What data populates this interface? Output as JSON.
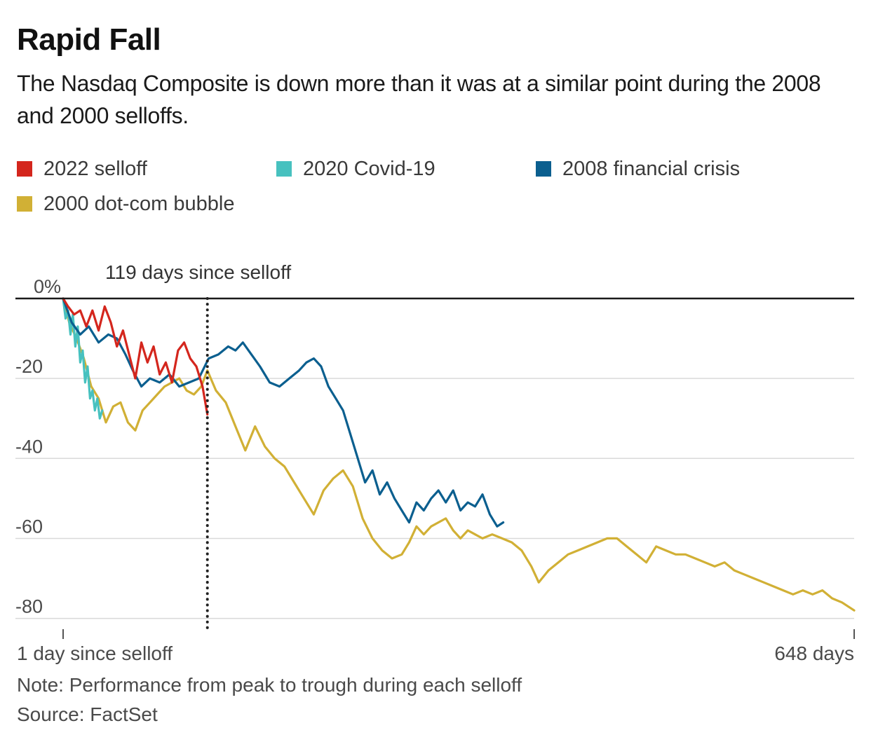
{
  "title": "Rapid Fall",
  "subtitle": "The Nasdaq Composite is down more than it was at a similar point during the 2008 and 2000 selloffs.",
  "note": "Note: Performance from peak to trough during each selloff",
  "source": "Source: FactSet",
  "chart_data": {
    "type": "line",
    "title": "Rapid Fall",
    "xlabel": "",
    "ylabel": "",
    "xlim": [
      1,
      648
    ],
    "ylim": [
      -82,
      0
    ],
    "x_tick_labels": [
      {
        "x": 1,
        "label": "1 day since selloff"
      },
      {
        "x": 648,
        "label": "648 days"
      }
    ],
    "y_ticks": [
      {
        "y": 0,
        "label": "0%"
      },
      {
        "y": -20,
        "label": "-20"
      },
      {
        "y": -40,
        "label": "-40"
      },
      {
        "y": -60,
        "label": "-60"
      },
      {
        "y": -80,
        "label": "-80"
      }
    ],
    "grid": true,
    "legend_position": "top",
    "annotation": {
      "x": 119,
      "label": "119 days since selloff",
      "style": "dotted-vertical-line"
    },
    "series": [
      {
        "name": "2022 selloff",
        "color": "#d4261d",
        "points": [
          [
            1,
            0
          ],
          [
            5,
            -2
          ],
          [
            10,
            -4
          ],
          [
            15,
            -3
          ],
          [
            20,
            -7
          ],
          [
            25,
            -3
          ],
          [
            30,
            -8
          ],
          [
            35,
            -2
          ],
          [
            40,
            -6
          ],
          [
            45,
            -12
          ],
          [
            50,
            -8
          ],
          [
            55,
            -14
          ],
          [
            60,
            -20
          ],
          [
            65,
            -11
          ],
          [
            70,
            -16
          ],
          [
            75,
            -12
          ],
          [
            80,
            -19
          ],
          [
            85,
            -16
          ],
          [
            90,
            -21
          ],
          [
            95,
            -13
          ],
          [
            100,
            -11
          ],
          [
            105,
            -15
          ],
          [
            110,
            -17
          ],
          [
            115,
            -22
          ],
          [
            119,
            -29
          ]
        ]
      },
      {
        "name": "2020 Covid-19",
        "color": "#47c1bf",
        "points": [
          [
            1,
            0
          ],
          [
            3,
            -5
          ],
          [
            5,
            -3
          ],
          [
            7,
            -9
          ],
          [
            9,
            -4
          ],
          [
            11,
            -12
          ],
          [
            13,
            -7
          ],
          [
            15,
            -16
          ],
          [
            17,
            -13
          ],
          [
            19,
            -21
          ],
          [
            21,
            -17
          ],
          [
            23,
            -25
          ],
          [
            25,
            -23
          ],
          [
            27,
            -28
          ],
          [
            29,
            -25
          ],
          [
            31,
            -30
          ],
          [
            33,
            -28
          ]
        ]
      },
      {
        "name": "2008 financial crisis",
        "color": "#0b5f8f",
        "points": [
          [
            1,
            0
          ],
          [
            8,
            -6
          ],
          [
            15,
            -9
          ],
          [
            22,
            -7
          ],
          [
            30,
            -11
          ],
          [
            38,
            -9
          ],
          [
            45,
            -10
          ],
          [
            52,
            -14
          ],
          [
            58,
            -18
          ],
          [
            65,
            -22
          ],
          [
            72,
            -20
          ],
          [
            80,
            -21
          ],
          [
            88,
            -19
          ],
          [
            96,
            -22
          ],
          [
            104,
            -21
          ],
          [
            112,
            -20
          ],
          [
            120,
            -15
          ],
          [
            128,
            -14
          ],
          [
            136,
            -12
          ],
          [
            142,
            -13
          ],
          [
            148,
            -11
          ],
          [
            155,
            -14
          ],
          [
            162,
            -17
          ],
          [
            170,
            -21
          ],
          [
            178,
            -22
          ],
          [
            186,
            -20
          ],
          [
            194,
            -18
          ],
          [
            200,
            -16
          ],
          [
            206,
            -15
          ],
          [
            212,
            -17
          ],
          [
            218,
            -22
          ],
          [
            224,
            -25
          ],
          [
            230,
            -28
          ],
          [
            236,
            -34
          ],
          [
            242,
            -40
          ],
          [
            248,
            -46
          ],
          [
            254,
            -43
          ],
          [
            260,
            -49
          ],
          [
            266,
            -46
          ],
          [
            272,
            -50
          ],
          [
            278,
            -53
          ],
          [
            284,
            -56
          ],
          [
            290,
            -51
          ],
          [
            296,
            -53
          ],
          [
            302,
            -50
          ],
          [
            308,
            -48
          ],
          [
            314,
            -51
          ],
          [
            320,
            -48
          ],
          [
            326,
            -53
          ],
          [
            332,
            -51
          ],
          [
            338,
            -52
          ],
          [
            344,
            -49
          ],
          [
            350,
            -54
          ],
          [
            356,
            -57
          ],
          [
            361,
            -56
          ]
        ]
      },
      {
        "name": "2000 dot-com bubble",
        "color": "#d1b035",
        "points": [
          [
            1,
            0
          ],
          [
            6,
            -6
          ],
          [
            12,
            -10
          ],
          [
            18,
            -15
          ],
          [
            24,
            -22
          ],
          [
            30,
            -25
          ],
          [
            36,
            -31
          ],
          [
            42,
            -27
          ],
          [
            48,
            -26
          ],
          [
            54,
            -31
          ],
          [
            60,
            -33
          ],
          [
            66,
            -28
          ],
          [
            72,
            -26
          ],
          [
            78,
            -24
          ],
          [
            84,
            -22
          ],
          [
            90,
            -21
          ],
          [
            96,
            -20
          ],
          [
            102,
            -23
          ],
          [
            108,
            -24
          ],
          [
            114,
            -22
          ],
          [
            119,
            -18
          ],
          [
            126,
            -23
          ],
          [
            134,
            -26
          ],
          [
            142,
            -32
          ],
          [
            150,
            -38
          ],
          [
            158,
            -32
          ],
          [
            166,
            -37
          ],
          [
            174,
            -40
          ],
          [
            182,
            -42
          ],
          [
            190,
            -46
          ],
          [
            198,
            -50
          ],
          [
            206,
            -54
          ],
          [
            214,
            -48
          ],
          [
            222,
            -45
          ],
          [
            230,
            -43
          ],
          [
            238,
            -47
          ],
          [
            246,
            -55
          ],
          [
            254,
            -60
          ],
          [
            262,
            -63
          ],
          [
            270,
            -65
          ],
          [
            278,
            -64
          ],
          [
            284,
            -61
          ],
          [
            290,
            -57
          ],
          [
            296,
            -59
          ],
          [
            302,
            -57
          ],
          [
            308,
            -56
          ],
          [
            314,
            -55
          ],
          [
            320,
            -58
          ],
          [
            326,
            -60
          ],
          [
            332,
            -58
          ],
          [
            338,
            -59
          ],
          [
            344,
            -60
          ],
          [
            352,
            -59
          ],
          [
            360,
            -60
          ],
          [
            368,
            -61
          ],
          [
            376,
            -63
          ],
          [
            384,
            -67
          ],
          [
            390,
            -71
          ],
          [
            398,
            -68
          ],
          [
            406,
            -66
          ],
          [
            414,
            -64
          ],
          [
            422,
            -63
          ],
          [
            430,
            -62
          ],
          [
            438,
            -61
          ],
          [
            446,
            -60
          ],
          [
            454,
            -60
          ],
          [
            462,
            -62
          ],
          [
            470,
            -64
          ],
          [
            478,
            -66
          ],
          [
            486,
            -62
          ],
          [
            494,
            -63
          ],
          [
            502,
            -64
          ],
          [
            510,
            -64
          ],
          [
            518,
            -65
          ],
          [
            526,
            -66
          ],
          [
            534,
            -67
          ],
          [
            542,
            -66
          ],
          [
            550,
            -68
          ],
          [
            558,
            -69
          ],
          [
            566,
            -70
          ],
          [
            574,
            -71
          ],
          [
            582,
            -72
          ],
          [
            590,
            -73
          ],
          [
            598,
            -74
          ],
          [
            606,
            -73
          ],
          [
            614,
            -74
          ],
          [
            622,
            -73
          ],
          [
            630,
            -75
          ],
          [
            638,
            -76
          ],
          [
            648,
            -78
          ]
        ]
      }
    ]
  }
}
